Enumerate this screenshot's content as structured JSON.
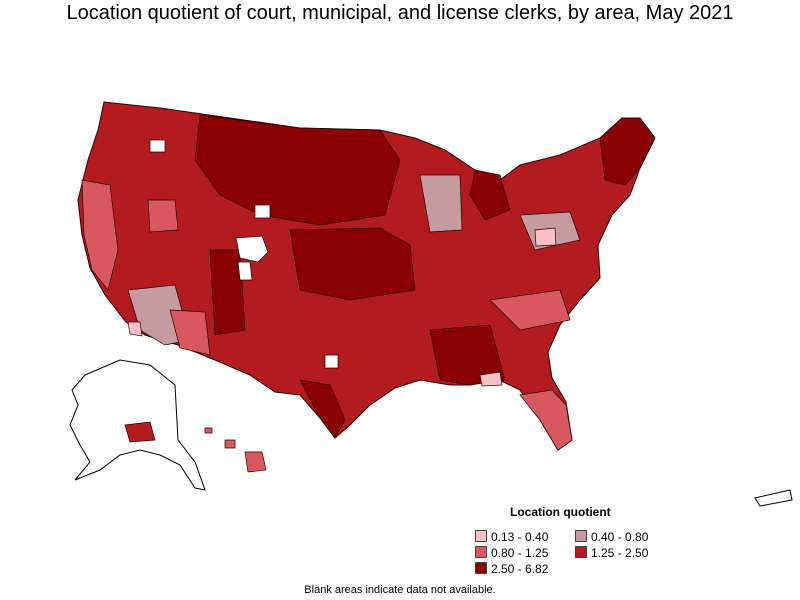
{
  "title": "Location quotient of court, municipal, and license clerks, by area, May 2021",
  "legend": {
    "title": "Location quotient",
    "items": [
      {
        "label": "0.13 - 0.40",
        "color": "#f9c1c6"
      },
      {
        "label": "0.40 - 0.80",
        "color": "#c59b9f"
      },
      {
        "label": "0.80 - 1.25",
        "color": "#d9585f"
      },
      {
        "label": "1.25 - 2.50",
        "color": "#b31b1f"
      },
      {
        "label": "2.50 - 6.82",
        "color": "#8b0000"
      }
    ]
  },
  "footnote": "Blank areas indicate data not available.",
  "colors": {
    "class1": "#f9c1c6",
    "class2": "#c59b9f",
    "class3": "#d9585f",
    "class4": "#b31b1f",
    "class5": "#8b0000",
    "blank": "#ffffff",
    "border": "#2b0000"
  }
}
